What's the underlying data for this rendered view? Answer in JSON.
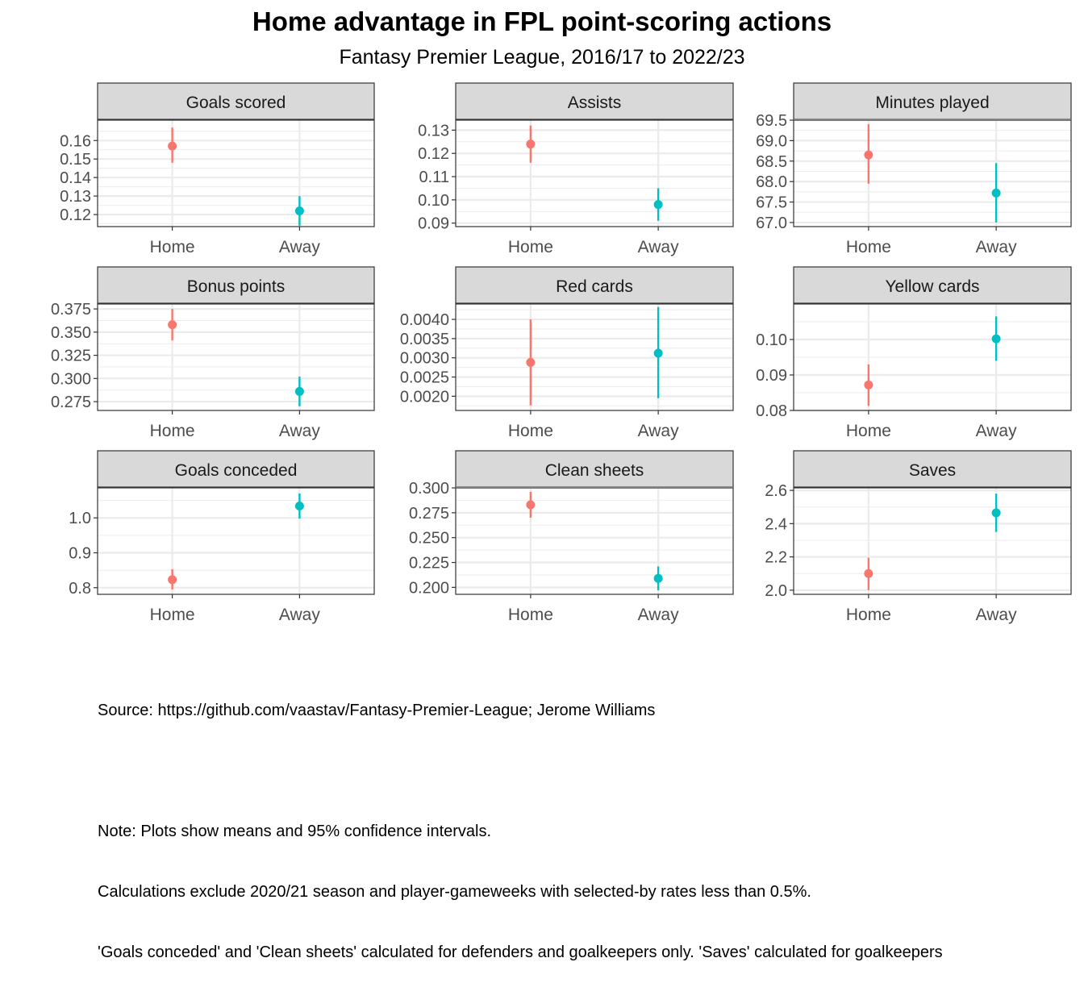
{
  "title": "Home advantage in FPL point-scoring actions",
  "subtitle": "Fantasy Premier League, 2016/17 to 2022/23",
  "colors": {
    "home": "#F8766D",
    "away": "#00BFC4",
    "strip_fill": "#D9D9D9",
    "grid": "#EBEBEB"
  },
  "caption": {
    "source": "Source: https://github.com/vaastav/Fantasy-Premier-League; Jerome Williams",
    "note_lines": [
      "Note: Plots show means and 95% confidence intervals.",
      "Calculations exclude 2020/21 season and player-gameweeks with selected-by rates less than 0.5%.",
      "'Goals conceded' and 'Clean sheets' calculated for defenders and goalkeepers only. 'Saves' calculated for goalkeepers"
    ]
  },
  "chart_data": [
    {
      "type": "scatter",
      "title": "Goals scored",
      "categories": [
        "Home",
        "Away"
      ],
      "ylim": [
        0.1135,
        0.171
      ],
      "ticks": [
        "0.12",
        "0.13",
        "0.14",
        "0.15",
        "0.16"
      ],
      "points": [
        {
          "x": "Home",
          "y": 0.157,
          "lo": 0.148,
          "hi": 0.167
        },
        {
          "x": "Away",
          "y": 0.122,
          "lo": 0.114,
          "hi": 0.13
        }
      ]
    },
    {
      "type": "scatter",
      "title": "Assists",
      "categories": [
        "Home",
        "Away"
      ],
      "ylim": [
        0.0885,
        0.1343
      ],
      "ticks": [
        "0.09",
        "0.10",
        "0.11",
        "0.12",
        "0.13"
      ],
      "points": [
        {
          "x": "Home",
          "y": 0.124,
          "lo": 0.116,
          "hi": 0.132
        },
        {
          "x": "Away",
          "y": 0.098,
          "lo": 0.091,
          "hi": 0.105
        }
      ]
    },
    {
      "type": "scatter",
      "title": "Minutes played",
      "categories": [
        "Home",
        "Away"
      ],
      "ylim": [
        66.9,
        69.5
      ],
      "ticks": [
        "67.0",
        "67.5",
        "68.0",
        "68.5",
        "69.0",
        "69.5"
      ],
      "points": [
        {
          "x": "Home",
          "y": 68.65,
          "lo": 67.95,
          "hi": 69.4
        },
        {
          "x": "Away",
          "y": 67.72,
          "lo": 67.0,
          "hi": 68.45
        }
      ]
    },
    {
      "type": "scatter",
      "title": "Bonus points",
      "categories": [
        "Home",
        "Away"
      ],
      "ylim": [
        0.2655,
        0.3803
      ],
      "ticks": [
        "0.275",
        "0.300",
        "0.325",
        "0.350",
        "0.375"
      ],
      "points": [
        {
          "x": "Home",
          "y": 0.358,
          "lo": 0.341,
          "hi": 0.375
        },
        {
          "x": "Away",
          "y": 0.286,
          "lo": 0.27,
          "hi": 0.302
        }
      ]
    },
    {
      "type": "scatter",
      "title": "Red cards",
      "categories": [
        "Home",
        "Away"
      ],
      "ylim": [
        0.00163,
        0.0044
      ],
      "ticks": [
        "0.0020",
        "0.0025",
        "0.0030",
        "0.0035",
        "0.0040"
      ],
      "points": [
        {
          "x": "Home",
          "y": 0.00288,
          "lo": 0.00176,
          "hi": 0.004
        },
        {
          "x": "Away",
          "y": 0.00312,
          "lo": 0.00195,
          "hi": 0.00432
        }
      ]
    },
    {
      "type": "scatter",
      "title": "Yellow cards",
      "categories": [
        "Home",
        "Away"
      ],
      "ylim": [
        0.08,
        0.11
      ],
      "ticks": [
        "0.08",
        "0.09",
        "0.10"
      ],
      "points": [
        {
          "x": "Home",
          "y": 0.0872,
          "lo": 0.0813,
          "hi": 0.093
        },
        {
          "x": "Away",
          "y": 0.1002,
          "lo": 0.094,
          "hi": 0.1065
        }
      ]
    },
    {
      "type": "scatter",
      "title": "Goals conceded",
      "categories": [
        "Home",
        "Away"
      ],
      "ylim": [
        0.781,
        1.086
      ],
      "ticks": [
        "0.8",
        "0.9",
        "1.0"
      ],
      "points": [
        {
          "x": "Home",
          "y": 0.823,
          "lo": 0.795,
          "hi": 0.853
        },
        {
          "x": "Away",
          "y": 1.034,
          "lo": 0.998,
          "hi": 1.07
        }
      ]
    },
    {
      "type": "scatter",
      "title": "Clean sheets",
      "categories": [
        "Home",
        "Away"
      ],
      "ylim": [
        0.193,
        0.3
      ],
      "ticks": [
        "0.200",
        "0.225",
        "0.250",
        "0.275",
        "0.300"
      ],
      "points": [
        {
          "x": "Home",
          "y": 0.283,
          "lo": 0.27,
          "hi": 0.296
        },
        {
          "x": "Away",
          "y": 0.209,
          "lo": 0.197,
          "hi": 0.221
        }
      ]
    },
    {
      "type": "scatter",
      "title": "Saves",
      "categories": [
        "Home",
        "Away"
      ],
      "ylim": [
        1.975,
        2.615
      ],
      "ticks": [
        "2.0",
        "2.2",
        "2.4",
        "2.6"
      ],
      "points": [
        {
          "x": "Home",
          "y": 2.1,
          "lo": 2.0,
          "hi": 2.195
        },
        {
          "x": "Away",
          "y": 2.465,
          "lo": 2.35,
          "hi": 2.58
        }
      ]
    }
  ]
}
